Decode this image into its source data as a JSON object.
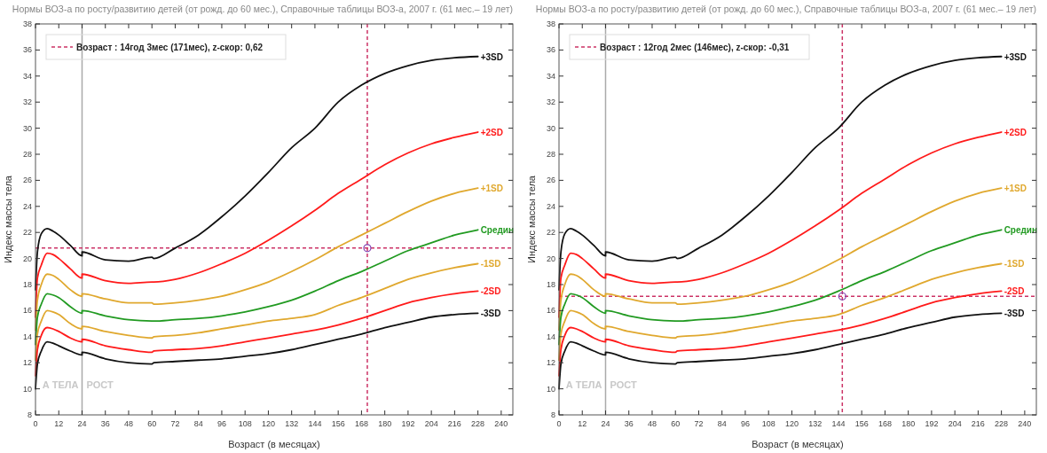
{
  "chart_data": [
    {
      "type": "line",
      "title": "Нормы ВОЗ-а по росту/развитию детей (от рожд. до 60 мес.), Справочные таблицы ВОЗ-а, 2007 г. (61 мес.– 19 лет)",
      "xlabel": "Возраст (в месяцах)",
      "ylabel": "Индекс массы тела",
      "x": [
        0,
        1,
        3,
        6,
        9,
        12,
        18,
        24,
        24,
        36,
        48,
        60,
        61,
        72,
        84,
        96,
        108,
        120,
        132,
        144,
        156,
        168,
        180,
        192,
        204,
        216,
        228
      ],
      "series": [
        {
          "name": "+3SD",
          "color": "#111111",
          "values": [
            17.6,
            20.5,
            21.9,
            22.3,
            22.1,
            21.8,
            21.0,
            20.2,
            20.5,
            19.9,
            19.8,
            20.1,
            20.0,
            20.8,
            21.8,
            23.2,
            24.8,
            26.6,
            28.5,
            30.0,
            32.0,
            33.3,
            34.2,
            34.8,
            35.2,
            35.4,
            35.5
          ]
        },
        {
          "name": "+2SD",
          "color": "#ff1a1a",
          "values": [
            15.5,
            18.5,
            19.5,
            20.4,
            20.3,
            20.0,
            19.2,
            18.5,
            18.8,
            18.3,
            18.1,
            18.2,
            18.2,
            18.4,
            18.9,
            19.6,
            20.4,
            21.4,
            22.5,
            23.7,
            25.0,
            26.1,
            27.2,
            28.1,
            28.8,
            29.3,
            29.7
          ]
        },
        {
          "name": "+1SD",
          "color": "#e0a82e",
          "values": [
            14.5,
            16.8,
            18.0,
            18.8,
            18.7,
            18.4,
            17.6,
            17.1,
            17.3,
            16.9,
            16.6,
            16.6,
            16.5,
            16.6,
            16.8,
            17.1,
            17.6,
            18.2,
            19.0,
            19.9,
            20.9,
            21.8,
            22.7,
            23.6,
            24.4,
            25.0,
            25.4
          ]
        },
        {
          "name": "Средин",
          "color": "#219a21",
          "values": [
            13.4,
            15.5,
            16.5,
            17.3,
            17.2,
            17.0,
            16.3,
            15.8,
            16.0,
            15.6,
            15.3,
            15.2,
            15.2,
            15.3,
            15.4,
            15.6,
            15.9,
            16.3,
            16.8,
            17.5,
            18.3,
            19.0,
            19.8,
            20.6,
            21.2,
            21.8,
            22.2
          ]
        },
        {
          "name": "-1SD",
          "color": "#e0a82e",
          "values": [
            12.2,
            14.2,
            15.2,
            16.0,
            15.9,
            15.7,
            15.0,
            14.6,
            14.8,
            14.4,
            14.1,
            13.9,
            14.0,
            14.1,
            14.3,
            14.6,
            14.9,
            15.2,
            15.4,
            15.7,
            16.4,
            17.0,
            17.7,
            18.4,
            18.9,
            19.3,
            19.6
          ]
        },
        {
          "name": "-2SD",
          "color": "#ff1a1a",
          "values": [
            11.0,
            13.0,
            14.1,
            14.7,
            14.6,
            14.4,
            13.9,
            13.6,
            13.8,
            13.3,
            13.0,
            12.8,
            12.9,
            13.0,
            13.1,
            13.3,
            13.6,
            13.9,
            14.2,
            14.5,
            14.9,
            15.4,
            16.0,
            16.6,
            17.0,
            17.3,
            17.5
          ]
        },
        {
          "name": "-3SD",
          "color": "#111111",
          "values": [
            10.0,
            11.9,
            12.9,
            13.6,
            13.5,
            13.3,
            12.9,
            12.6,
            12.8,
            12.3,
            12.0,
            11.9,
            12.0,
            12.1,
            12.2,
            12.3,
            12.5,
            12.7,
            13.0,
            13.4,
            13.8,
            14.2,
            14.7,
            15.1,
            15.5,
            15.7,
            15.8
          ]
        },
        {
          "type": "scatter",
          "x": [
            171
          ],
          "values": [
            20.8
          ],
          "color": "#8040b0",
          "marker": "circle"
        }
      ],
      "ref_lines": [
        {
          "axis": "x",
          "value": 24,
          "color": "#aaaaaa",
          "line_style": "solid"
        },
        {
          "axis": "x",
          "value": 171,
          "color": "#cc3366",
          "line_style": "dashed"
        },
        {
          "axis": "y",
          "value": 20.8,
          "color": "#cc3366",
          "line_style": "dashed"
        }
      ],
      "annotations": [
        "А ТЕЛА",
        "РОСТ",
        "Возраст : 14год 3мес (171мес), z-скор: 0,62"
      ],
      "xlim": [
        0,
        246
      ],
      "xticks": [
        0,
        12,
        24,
        36,
        48,
        60,
        72,
        84,
        96,
        108,
        120,
        132,
        144,
        156,
        168,
        180,
        192,
        204,
        216,
        228,
        240
      ],
      "ylim": [
        8,
        38
      ],
      "yticks": [
        8,
        10,
        12,
        14,
        16,
        18,
        20,
        22,
        24,
        26,
        28,
        30,
        32,
        34,
        36,
        38
      ],
      "grid": false,
      "legend": "right"
    },
    {
      "type": "line",
      "title": "Нормы ВОЗ-а по росту/развитию детей (от рожд. до 60 мес.), Справочные таблицы ВОЗ-а, 2007 г. (61 мес.– 19 лет)",
      "xlabel": "Возраст (в месяцах)",
      "ylabel": "Индекс массы тела",
      "x": [
        0,
        1,
        3,
        6,
        9,
        12,
        18,
        24,
        24,
        36,
        48,
        60,
        61,
        72,
        84,
        96,
        108,
        120,
        132,
        144,
        156,
        168,
        180,
        192,
        204,
        216,
        228
      ],
      "series": [
        {
          "name": "+3SD",
          "color": "#111111",
          "values": [
            17.6,
            20.5,
            21.9,
            22.3,
            22.1,
            21.8,
            21.0,
            20.2,
            20.5,
            19.9,
            19.8,
            20.1,
            20.0,
            20.8,
            21.8,
            23.2,
            24.8,
            26.6,
            28.5,
            30.0,
            32.0,
            33.3,
            34.2,
            34.8,
            35.2,
            35.4,
            35.5
          ]
        },
        {
          "name": "+2SD",
          "color": "#ff1a1a",
          "values": [
            15.5,
            18.5,
            19.5,
            20.4,
            20.3,
            20.0,
            19.2,
            18.5,
            18.8,
            18.3,
            18.1,
            18.2,
            18.2,
            18.4,
            18.9,
            19.6,
            20.4,
            21.4,
            22.5,
            23.7,
            25.0,
            26.1,
            27.2,
            28.1,
            28.8,
            29.3,
            29.7
          ]
        },
        {
          "name": "+1SD",
          "color": "#e0a82e",
          "values": [
            14.5,
            16.8,
            18.0,
            18.8,
            18.7,
            18.4,
            17.6,
            17.1,
            17.3,
            16.9,
            16.6,
            16.6,
            16.5,
            16.6,
            16.8,
            17.1,
            17.6,
            18.2,
            19.0,
            19.9,
            20.9,
            21.8,
            22.7,
            23.6,
            24.4,
            25.0,
            25.4
          ]
        },
        {
          "name": "Средин",
          "color": "#219a21",
          "values": [
            13.4,
            15.5,
            16.5,
            17.3,
            17.2,
            17.0,
            16.3,
            15.8,
            16.0,
            15.6,
            15.3,
            15.2,
            15.2,
            15.3,
            15.4,
            15.6,
            15.9,
            16.3,
            16.8,
            17.5,
            18.3,
            19.0,
            19.8,
            20.6,
            21.2,
            21.8,
            22.2
          ]
        },
        {
          "name": "-1SD",
          "color": "#e0a82e",
          "values": [
            12.2,
            14.2,
            15.2,
            16.0,
            15.9,
            15.7,
            15.0,
            14.6,
            14.8,
            14.4,
            14.1,
            13.9,
            14.0,
            14.1,
            14.3,
            14.6,
            14.9,
            15.2,
            15.4,
            15.7,
            16.4,
            17.0,
            17.7,
            18.4,
            18.9,
            19.3,
            19.6
          ]
        },
        {
          "name": "-2SD",
          "color": "#ff1a1a",
          "values": [
            11.0,
            13.0,
            14.1,
            14.7,
            14.6,
            14.4,
            13.9,
            13.6,
            13.8,
            13.3,
            13.0,
            12.8,
            12.9,
            13.0,
            13.1,
            13.3,
            13.6,
            13.9,
            14.2,
            14.5,
            14.9,
            15.4,
            16.0,
            16.6,
            17.0,
            17.3,
            17.5
          ]
        },
        {
          "name": "-3SD",
          "color": "#111111",
          "values": [
            10.0,
            11.9,
            12.9,
            13.6,
            13.5,
            13.3,
            12.9,
            12.6,
            12.8,
            12.3,
            12.0,
            11.9,
            12.0,
            12.1,
            12.2,
            12.3,
            12.5,
            12.7,
            13.0,
            13.4,
            13.8,
            14.2,
            14.7,
            15.1,
            15.5,
            15.7,
            15.8
          ]
        },
        {
          "type": "scatter",
          "x": [
            146
          ],
          "values": [
            17.1
          ],
          "color": "#8040b0",
          "marker": "circle"
        }
      ],
      "ref_lines": [
        {
          "axis": "x",
          "value": 24,
          "color": "#aaaaaa",
          "line_style": "solid"
        },
        {
          "axis": "x",
          "value": 146,
          "color": "#cc3366",
          "line_style": "dashed"
        },
        {
          "axis": "y",
          "value": 17.1,
          "color": "#cc3366",
          "line_style": "dashed"
        }
      ],
      "annotations": [
        "А ТЕЛА",
        "РОСТ",
        "Возраст : 12год 2мес (146мес), z-скор: -0,31"
      ],
      "xlim": [
        0,
        246
      ],
      "xticks": [
        0,
        12,
        24,
        36,
        48,
        60,
        72,
        84,
        96,
        108,
        120,
        132,
        144,
        156,
        168,
        180,
        192,
        204,
        216,
        228,
        240
      ],
      "ylim": [
        8,
        38
      ],
      "yticks": [
        8,
        10,
        12,
        14,
        16,
        18,
        20,
        22,
        24,
        26,
        28,
        30,
        32,
        34,
        36,
        38
      ],
      "grid": false,
      "legend": "right"
    }
  ]
}
